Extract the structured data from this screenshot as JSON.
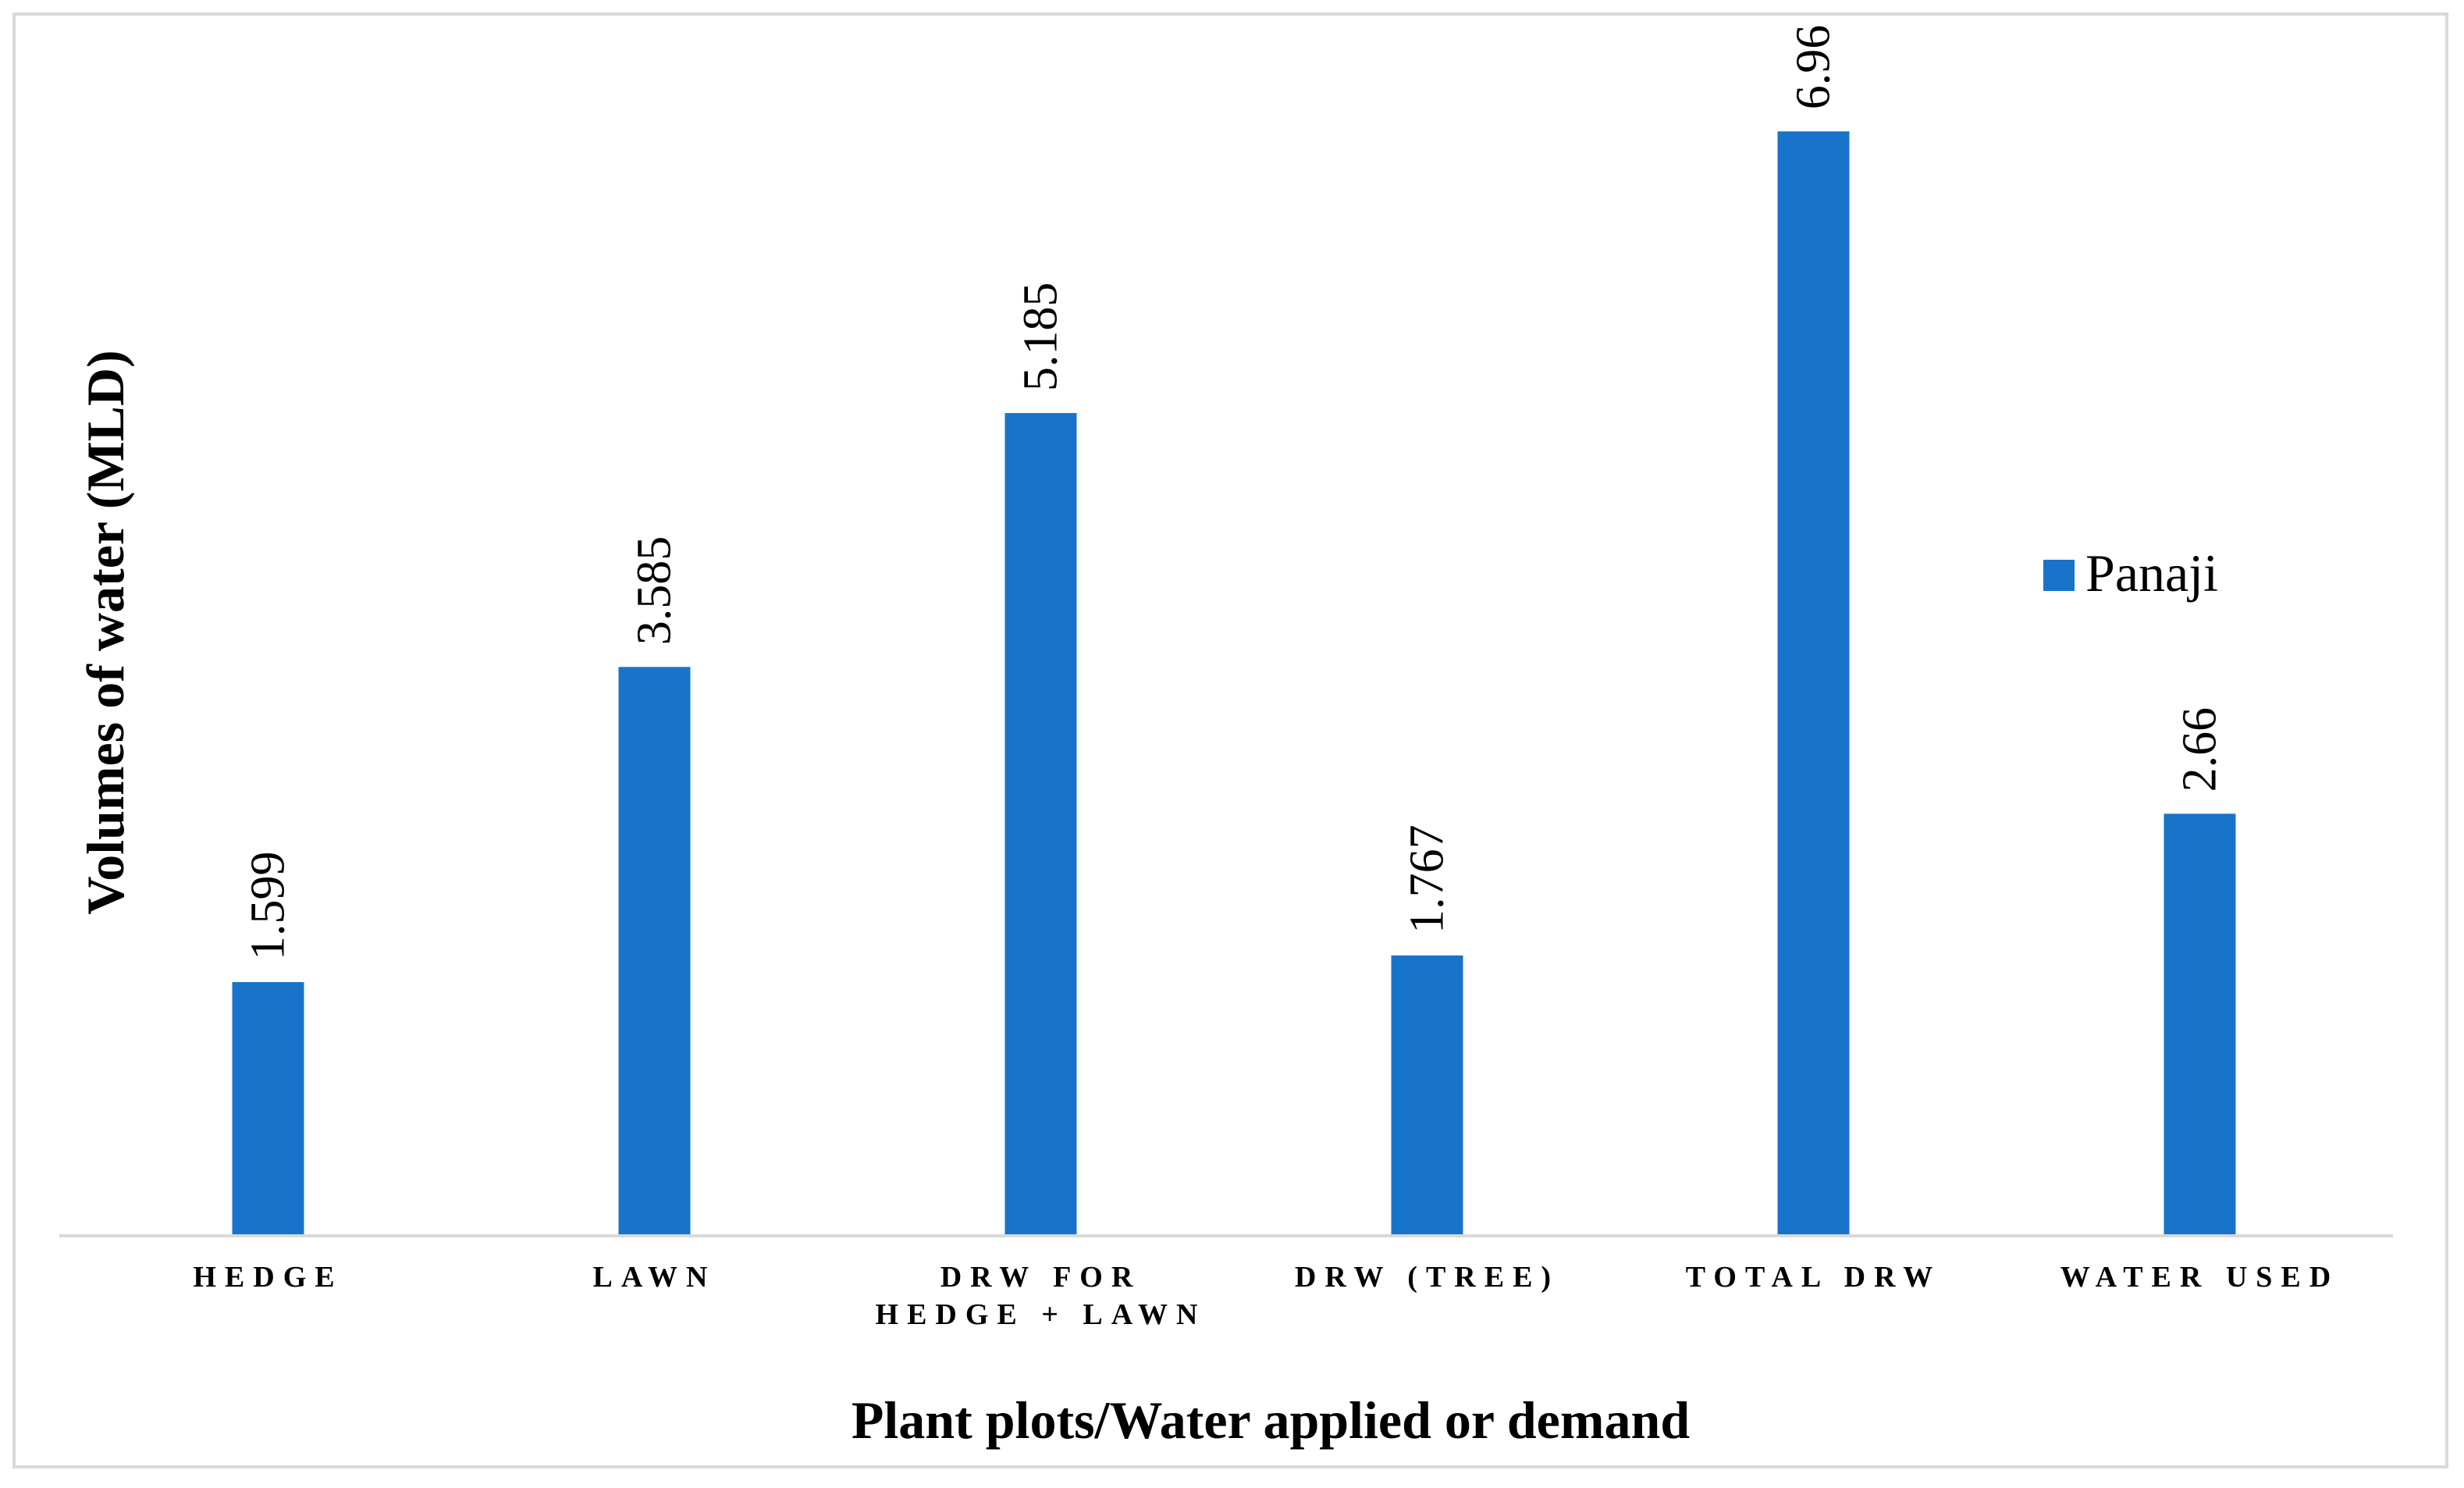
{
  "chart_data": {
    "type": "bar",
    "title": "",
    "xlabel": "Plant plots/Water applied or demand",
    "ylabel": "Volumes of water (MLD)",
    "categories": [
      [
        "HEDGE"
      ],
      [
        "LAWN"
      ],
      [
        "DRW  FOR",
        "HEDGE + LAWN"
      ],
      [
        "DRW (TREE)"
      ],
      [
        "TOTAL DRW"
      ],
      [
        "WATER USED"
      ]
    ],
    "series": [
      {
        "name": "Panaji",
        "values": [
          1.599,
          3.585,
          5.185,
          1.767,
          6.96,
          2.66
        ],
        "data_labels": [
          "1.599",
          "3.585",
          "5.185",
          "1.767",
          "6.96",
          "2.66"
        ],
        "color": "#1874CA"
      }
    ],
    "ylim": [
      0,
      7.05
    ],
    "grid": false,
    "legend_position": "right"
  }
}
